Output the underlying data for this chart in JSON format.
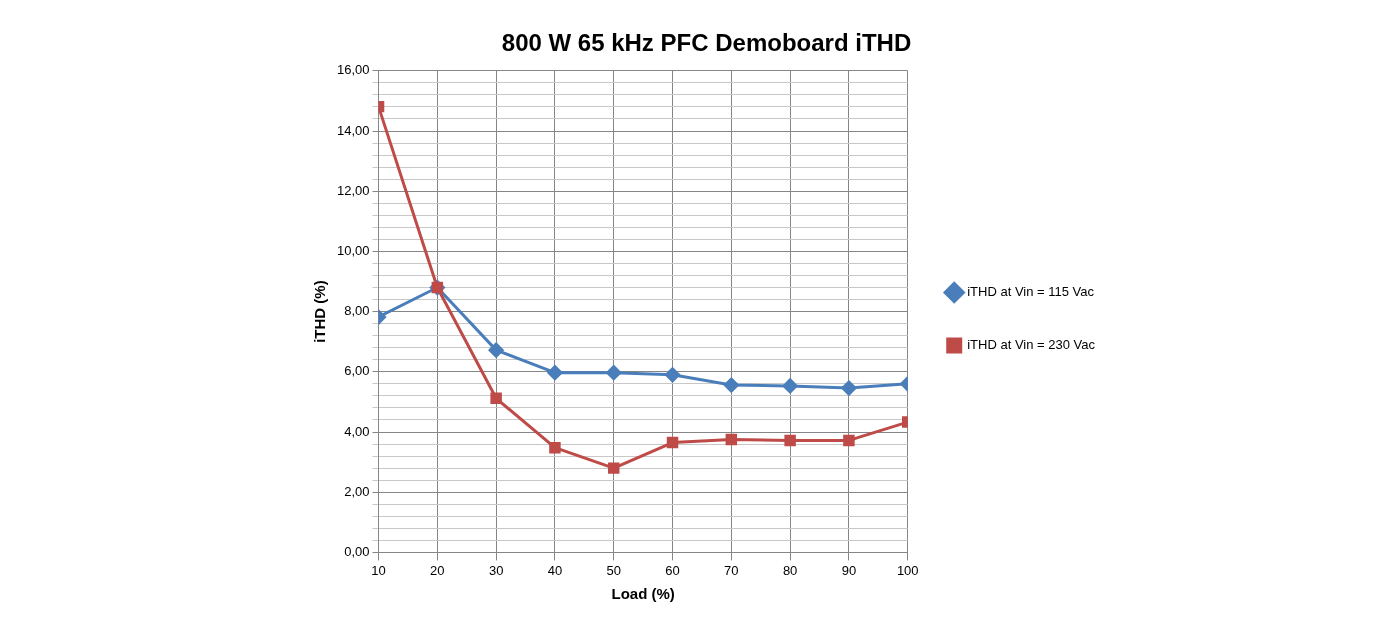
{
  "chart_data": {
    "type": "line",
    "title": "800 W 65 kHz PFC Demoboard iTHD",
    "xlabel": "Load (%)",
    "ylabel": "iTHD (%)",
    "x": [
      10,
      20,
      30,
      40,
      50,
      60,
      70,
      80,
      90,
      100
    ],
    "series": [
      {
        "name": "iTHD at Vin = 115 Vac",
        "color": "#4a7ebb",
        "marker": "diamond",
        "values": [
          7.82,
          8.8,
          6.72,
          5.97,
          5.97,
          5.9,
          5.56,
          5.53,
          5.46,
          5.6
        ]
      },
      {
        "name": "iTHD at Vin = 230 Vac",
        "color": "#be4b48",
        "marker": "square",
        "values": [
          14.81,
          8.8,
          5.12,
          3.48,
          2.8,
          3.65,
          3.75,
          3.72,
          3.72,
          4.33
        ]
      }
    ],
    "xlim": [
      10,
      100
    ],
    "xticks": [
      10,
      20,
      30,
      40,
      50,
      60,
      70,
      80,
      90,
      100
    ],
    "ylim": [
      0,
      16
    ],
    "yticks": [
      {
        "value": 0,
        "label": "0,00"
      },
      {
        "value": 0.4,
        "label": null
      },
      {
        "value": 0.8,
        "label": null
      },
      {
        "value": 1.2,
        "label": null
      },
      {
        "value": 1.6,
        "label": null
      },
      {
        "value": 2,
        "label": "2,00"
      },
      {
        "value": 2.4,
        "label": null
      },
      {
        "value": 2.8,
        "label": null
      },
      {
        "value": 3.2,
        "label": null
      },
      {
        "value": 3.6,
        "label": null
      },
      {
        "value": 4,
        "label": "4,00"
      },
      {
        "value": 4.4,
        "label": null
      },
      {
        "value": 4.8,
        "label": null
      },
      {
        "value": 5.2,
        "label": null
      },
      {
        "value": 5.6,
        "label": null
      },
      {
        "value": 6,
        "label": "6,00"
      },
      {
        "value": 6.4,
        "label": null
      },
      {
        "value": 6.8,
        "label": null
      },
      {
        "value": 7.2,
        "label": null
      },
      {
        "value": 7.6,
        "label": null
      },
      {
        "value": 8,
        "label": "8,00"
      },
      {
        "value": 8.4,
        "label": null
      },
      {
        "value": 8.8,
        "label": null
      },
      {
        "value": 9.2,
        "label": null
      },
      {
        "value": 9.6,
        "label": null
      },
      {
        "value": 10,
        "label": "10,00"
      },
      {
        "value": 10.4,
        "label": null
      },
      {
        "value": 10.8,
        "label": null
      },
      {
        "value": 11.2,
        "label": null
      },
      {
        "value": 11.6,
        "label": null
      },
      {
        "value": 12,
        "label": "12,00"
      },
      {
        "value": 12.4,
        "label": null
      },
      {
        "value": 12.8,
        "label": null
      },
      {
        "value": 13.2,
        "label": null
      },
      {
        "value": 13.6,
        "label": null
      },
      {
        "value": 14,
        "label": "14,00"
      },
      {
        "value": 14.4,
        "label": null
      },
      {
        "value": 14.8,
        "label": null
      },
      {
        "value": 15.2,
        "label": null
      },
      {
        "value": 15.6,
        "label": null
      },
      {
        "value": 16,
        "label": "16,00"
      }
    ],
    "grid": true,
    "legend": "right",
    "line_style": "solid"
  }
}
